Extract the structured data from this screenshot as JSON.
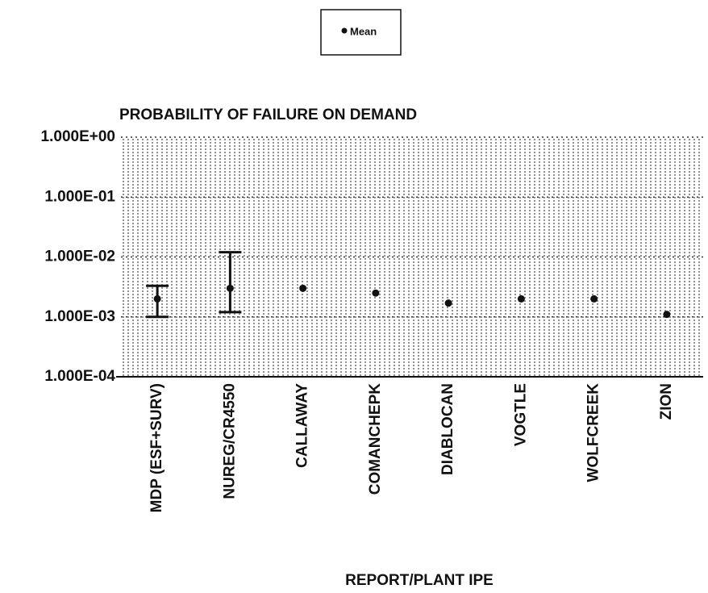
{
  "chart_data": {
    "type": "scatter",
    "title": "PROBABILITY OF FAILURE ON DEMAND",
    "x_label": "REPORT/PLANT IPE",
    "categories": [
      "MDP (ESF+SURV)",
      "NUREG/CR4550",
      "CALLAWAY",
      "COMANCHEPK",
      "DIABLOCAN",
      "VOGTLE",
      "WOLFCREEK",
      "ZION"
    ],
    "series": [
      {
        "name": "Mean",
        "color": "#111111",
        "values": [
          0.002,
          0.003,
          0.003,
          0.0025,
          0.0017,
          0.002,
          0.002,
          0.0011
        ],
        "lower": [
          0.001,
          0.0012,
          null,
          null,
          null,
          null,
          null,
          null
        ],
        "upper": [
          0.0033,
          0.012,
          null,
          null,
          null,
          null,
          null,
          null
        ]
      }
    ],
    "ylim": [
      0.0001,
      1
    ],
    "yticks": [
      {
        "value": 0.0001,
        "label": "1.000E-04"
      },
      {
        "value": 0.001,
        "label": "1.000E-03"
      },
      {
        "value": 0.01,
        "label": "1.000E-02"
      },
      {
        "value": 0.1,
        "label": "1.000E-01"
      },
      {
        "value": 1,
        "label": "1.000E+00"
      }
    ],
    "log_y": true,
    "grid": true,
    "legend": "top"
  }
}
